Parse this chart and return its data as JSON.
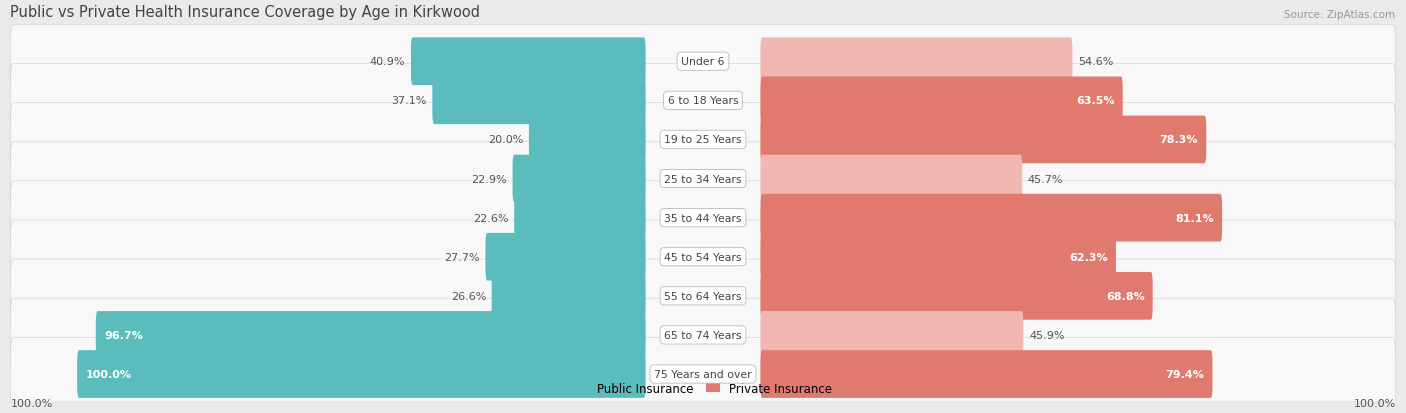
{
  "title": "Public vs Private Health Insurance Coverage by Age in Kirkwood",
  "source": "Source: ZipAtlas.com",
  "categories": [
    "Under 6",
    "6 to 18 Years",
    "19 to 25 Years",
    "25 to 34 Years",
    "35 to 44 Years",
    "45 to 54 Years",
    "55 to 64 Years",
    "65 to 74 Years",
    "75 Years and over"
  ],
  "public_values": [
    40.9,
    37.1,
    20.0,
    22.9,
    22.6,
    27.7,
    26.6,
    96.7,
    100.0
  ],
  "private_values": [
    54.6,
    63.5,
    78.3,
    45.7,
    81.1,
    62.3,
    68.8,
    45.9,
    79.4
  ],
  "public_color": "#5bbcbd",
  "private_color_strong": "#e07a6e",
  "private_color_light": "#f0b8b0",
  "bg_color": "#eaeaea",
  "row_bg_color": "#f8f8f8",
  "title_color": "#444444",
  "source_color": "#999999",
  "legend_public": "Public Insurance",
  "legend_private": "Private Insurance",
  "max_val": 100.0,
  "value_text_outside_color": "#555555",
  "value_text_inside_color": "#ffffff",
  "cat_label_color": "#444444"
}
